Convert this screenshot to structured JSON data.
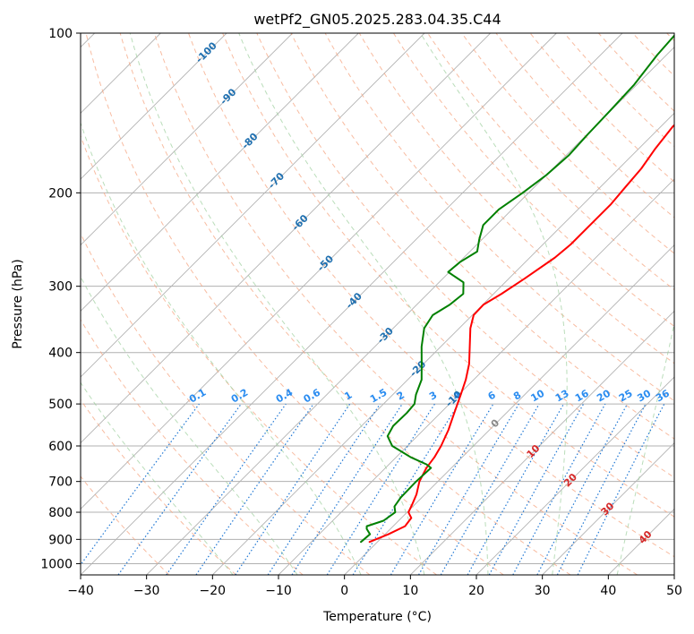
{
  "chart_data": {
    "type": "line",
    "subtype": "skew-t log-p diagram",
    "title": "wetPf2_GN05.2025.283.04.35.C44",
    "xlabel": "Temperature (°C)",
    "ylabel": "Pressure (hPa)",
    "xlim": [
      -40,
      50
    ],
    "ylim": [
      1050,
      100
    ],
    "x_ticks": [
      -40,
      -30,
      -20,
      -10,
      0,
      10,
      20,
      30,
      40,
      50
    ],
    "x_tick_labels": [
      "−40",
      "−30",
      "−20",
      "−10",
      "0",
      "10",
      "20",
      "30",
      "40",
      "50"
    ],
    "y_ticks": [
      1000,
      900,
      800,
      700,
      600,
      500,
      400,
      300,
      200,
      100
    ],
    "y_tick_labels": [
      "1000",
      "900",
      "800",
      "700",
      "600",
      "500",
      "400",
      "300",
      "200",
      "100"
    ],
    "isobars_hpa": [
      1000,
      900,
      800,
      700,
      600,
      500,
      400,
      300,
      200
    ],
    "isotherm_range": [
      -150,
      50
    ],
    "isotherm_step": 10,
    "isotherm_labels": [
      {
        "text": "-100",
        "t": -100,
        "p": 109
      },
      {
        "text": "-90",
        "t": -90,
        "p": 132
      },
      {
        "text": "-80",
        "t": -80,
        "p": 160
      },
      {
        "text": "-70",
        "t": -70,
        "p": 190
      },
      {
        "text": "-60",
        "t": -60,
        "p": 228
      },
      {
        "text": "-50",
        "t": -50,
        "p": 272
      },
      {
        "text": "-40",
        "t": -40,
        "p": 320
      },
      {
        "text": "-30",
        "t": -30,
        "p": 372
      },
      {
        "text": "-20",
        "t": -20,
        "p": 430
      },
      {
        "text": "-10",
        "t": -10,
        "p": 490
      },
      {
        "text": "0",
        "t": 0,
        "p": 545
      },
      {
        "text": "10",
        "t": 10,
        "p": 615
      },
      {
        "text": "20",
        "t": 20,
        "p": 697
      },
      {
        "text": "30",
        "t": 30,
        "p": 790
      },
      {
        "text": "40",
        "t": 40,
        "p": 893
      }
    ],
    "mixing_ratio_lines": [
      0.1,
      0.2,
      0.4,
      0.6,
      1,
      1.5,
      2,
      3,
      4,
      6,
      8,
      10,
      13,
      16,
      20,
      25,
      30,
      36
    ],
    "mixing_ratio_labels": [
      "0.1",
      "0.2",
      "0.4",
      "0.6",
      "1",
      "1.5",
      "2",
      "3",
      "4",
      "6",
      "8",
      "10",
      "13",
      "16",
      "20",
      "25",
      "30",
      "36"
    ],
    "dry_adiabats_theta_c": [
      -30,
      -20,
      -10,
      0,
      10,
      20,
      30,
      40,
      50,
      60,
      70,
      80,
      90,
      100,
      110,
      120,
      130,
      140,
      150,
      160,
      170,
      180,
      190,
      200,
      210,
      220
    ],
    "moist_adiabats_c": [
      -20,
      -10,
      0,
      10,
      20,
      30,
      40
    ],
    "series": [
      {
        "name": "Temperature",
        "color": "#ff0000",
        "points": [
          [
            910,
            -1.2
          ],
          [
            880,
            0.5
          ],
          [
            850,
            1.8
          ],
          [
            820,
            1.5
          ],
          [
            800,
            0.2
          ],
          [
            770,
            -0.5
          ],
          [
            740,
            -1.3
          ],
          [
            700,
            -2.8
          ],
          [
            660,
            -3.8
          ],
          [
            630,
            -4.2
          ],
          [
            600,
            -4.9
          ],
          [
            560,
            -6.2
          ],
          [
            520,
            -7.9
          ],
          [
            480,
            -9.7
          ],
          [
            450,
            -11.2
          ],
          [
            420,
            -13.1
          ],
          [
            390,
            -15.6
          ],
          [
            360,
            -18.3
          ],
          [
            340,
            -19.8
          ],
          [
            325,
            -19.9
          ],
          [
            310,
            -18.8
          ],
          [
            290,
            -17.6
          ],
          [
            265,
            -16.2
          ],
          [
            250,
            -15.8
          ],
          [
            230,
            -15.8
          ],
          [
            210,
            -15.8
          ],
          [
            195,
            -16.2
          ],
          [
            180,
            -16.6
          ],
          [
            165,
            -17.5
          ],
          [
            150,
            -18.2
          ],
          [
            135,
            -17.8
          ],
          [
            125,
            -17.6
          ],
          [
            115,
            -18.3
          ],
          [
            108,
            -18.5
          ],
          [
            100,
            -18.3
          ]
        ]
      },
      {
        "name": "Dew Point",
        "color": "#008000",
        "points": [
          [
            910,
            -2.5
          ],
          [
            880,
            -2.3
          ],
          [
            860,
            -3.6
          ],
          [
            850,
            -4.0
          ],
          [
            830,
            -2.3
          ],
          [
            800,
            -1.8
          ],
          [
            780,
            -2.8
          ],
          [
            750,
            -3.2
          ],
          [
            700,
            -3.3
          ],
          [
            660,
            -3.1
          ],
          [
            650,
            -4.3
          ],
          [
            630,
            -7.8
          ],
          [
            600,
            -12.3
          ],
          [
            575,
            -14.5
          ],
          [
            550,
            -15.2
          ],
          [
            520,
            -15.1
          ],
          [
            500,
            -15.3
          ],
          [
            480,
            -16.5
          ],
          [
            450,
            -17.9
          ],
          [
            420,
            -20.3
          ],
          [
            390,
            -22.9
          ],
          [
            360,
            -25.3
          ],
          [
            340,
            -26.0
          ],
          [
            325,
            -25.0
          ],
          [
            310,
            -24.6
          ],
          [
            295,
            -26.3
          ],
          [
            282,
            -30.2
          ],
          [
            270,
            -29.9
          ],
          [
            258,
            -28.9
          ],
          [
            245,
            -30.4
          ],
          [
            230,
            -32.0
          ],
          [
            215,
            -32.0
          ],
          [
            200,
            -30.9
          ],
          [
            185,
            -30.0
          ],
          [
            170,
            -29.6
          ],
          [
            155,
            -29.9
          ],
          [
            140,
            -30.1
          ],
          [
            125,
            -30.4
          ],
          [
            110,
            -31.4
          ],
          [
            100,
            -31.8
          ]
        ]
      }
    ]
  }
}
